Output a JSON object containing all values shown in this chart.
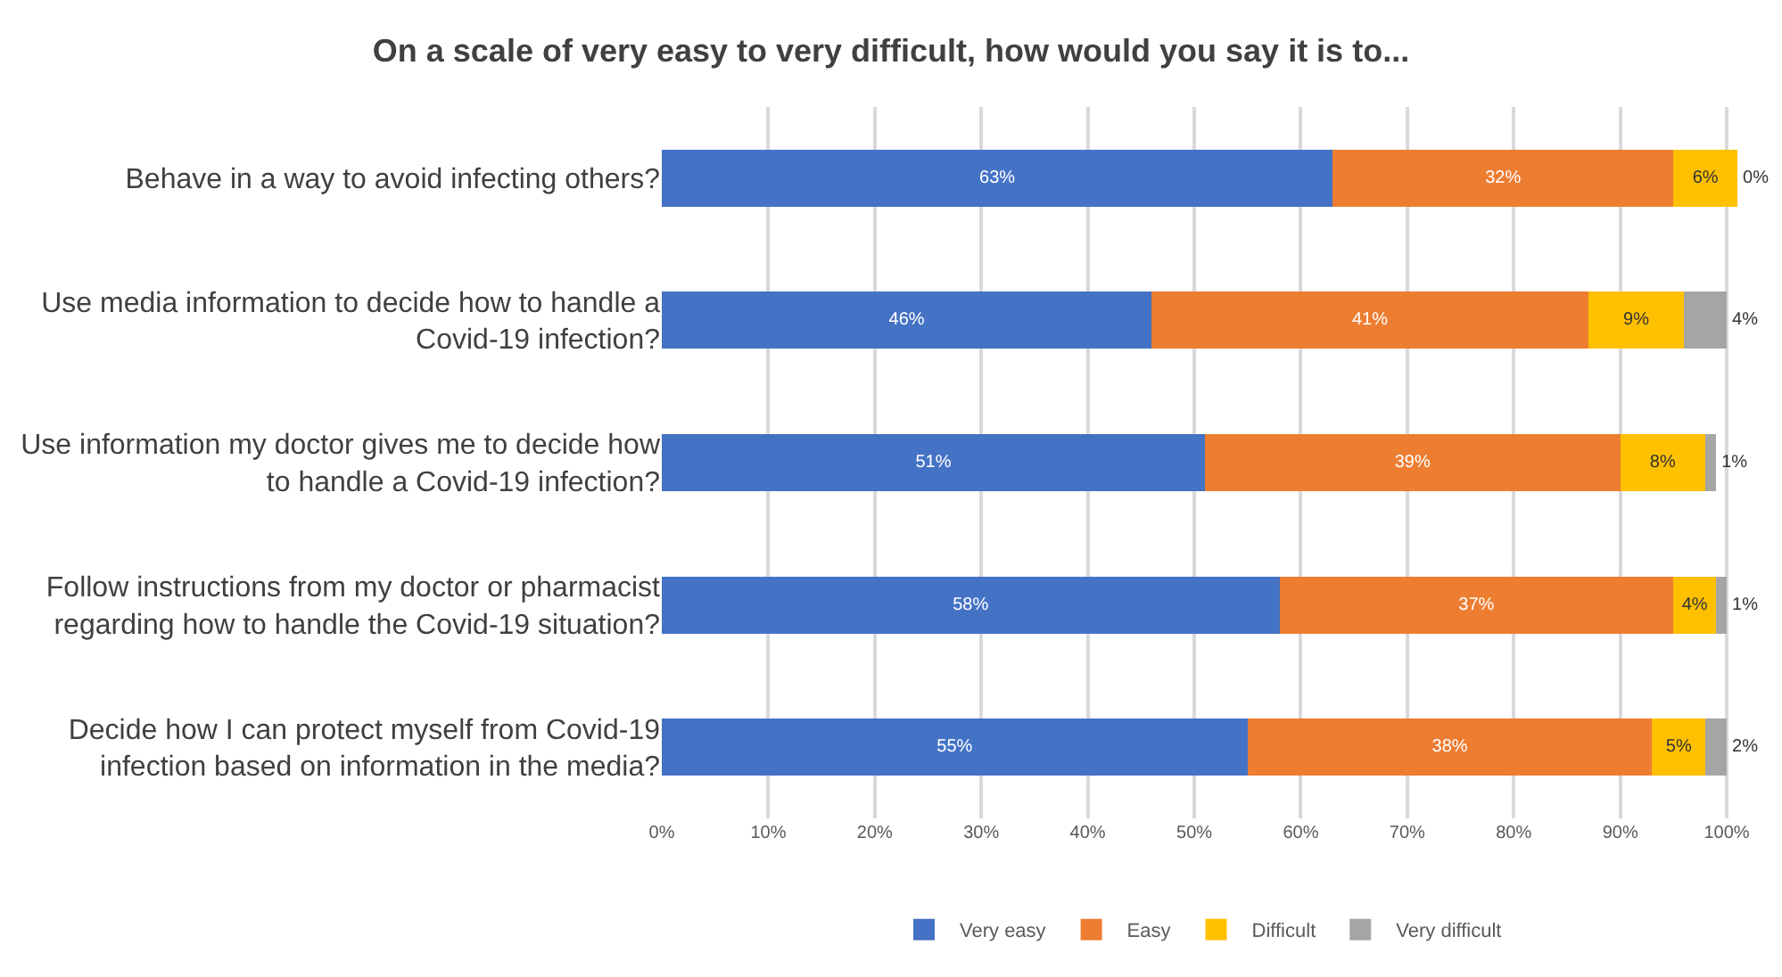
{
  "chart_data": {
    "type": "bar",
    "orientation": "horizontal",
    "stacked": true,
    "title": "On a scale of very easy to very difficult, how would you say it is to...",
    "categories": [
      "Behave in a way to avoid infecting others?",
      "Use media information to decide how to handle a Covid-19 infection?",
      "Use information my doctor gives me to decide how to handle a Covid-19 infection?",
      "Follow instructions from my doctor or pharmacist regarding how to handle the Covid-19 situation?",
      "Decide how I can protect myself from Covid-19 infection based on information in the media?"
    ],
    "series": [
      {
        "name": "Very easy",
        "color": "#4472c4",
        "values": [
          63,
          46,
          51,
          58,
          55
        ],
        "value_labels": [
          "63%",
          "46%",
          "51%",
          "58%",
          "55%"
        ]
      },
      {
        "name": "Easy",
        "color": "#ed7d31",
        "values": [
          32,
          41,
          39,
          37,
          38
        ],
        "value_labels": [
          "32%",
          "41%",
          "39%",
          "37%",
          "38%"
        ]
      },
      {
        "name": "Difficult",
        "color": "#ffc000",
        "values": [
          6,
          9,
          8,
          4,
          5
        ],
        "value_labels": [
          "6%",
          "9%",
          "8%",
          "4%",
          "5%"
        ]
      },
      {
        "name": "Very difficult",
        "color": "#a5a5a5",
        "values": [
          0,
          4,
          1,
          1,
          2
        ],
        "value_labels": [
          "0%",
          "4%",
          "1%",
          "1%",
          "2%"
        ]
      }
    ],
    "xlim": [
      0,
      101
    ],
    "xticks": [
      {
        "value": 0,
        "label": "0%"
      },
      {
        "value": 10,
        "label": "10%"
      },
      {
        "value": 20,
        "label": "20%"
      },
      {
        "value": 30,
        "label": "30%"
      },
      {
        "value": 40,
        "label": "40%"
      },
      {
        "value": 50,
        "label": "50%"
      },
      {
        "value": 60,
        "label": "60%"
      },
      {
        "value": 70,
        "label": "70%"
      },
      {
        "value": 80,
        "label": "80%"
      },
      {
        "value": 90,
        "label": "90%"
      },
      {
        "value": 100,
        "label": "100%"
      }
    ],
    "grid": "x",
    "legend": "bottom"
  }
}
